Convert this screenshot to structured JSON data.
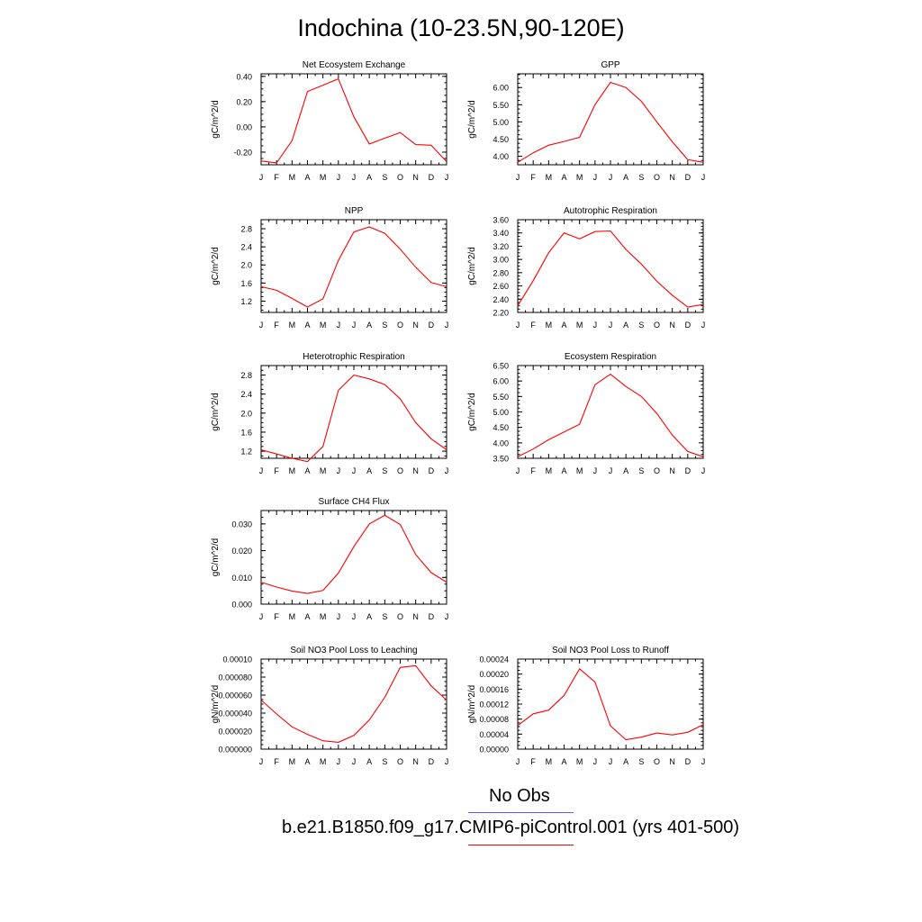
{
  "title": "Indochina (10-23.5N,90-120E)",
  "colors": {
    "model": "#ff0000",
    "obs": "#5a5aff",
    "axis": "#000000"
  },
  "months": [
    "J",
    "F",
    "M",
    "A",
    "M",
    "J",
    "J",
    "A",
    "S",
    "O",
    "N",
    "D",
    "J"
  ],
  "legend": {
    "obs_label": "No Obs",
    "model_label": "b.e21.B1850.f09_g17.CMIP6-piControl.001 (yrs 401-500)"
  },
  "chart_data": [
    {
      "type": "line",
      "title": "Net Ecosystem Exchange",
      "ylabel": "gC/m^2/d",
      "ylim": [
        -0.3,
        0.42
      ],
      "yticks": [
        -0.2,
        0.0,
        0.2,
        0.4
      ],
      "ytick_labels": [
        "-0.20",
        "0.00",
        "0.20",
        "0.40"
      ],
      "ytick_minor": 0.05,
      "values": [
        -0.27,
        -0.285,
        -0.11,
        0.28,
        0.33,
        0.38,
        0.08,
        -0.135,
        -0.09,
        -0.045,
        -0.14,
        -0.145,
        -0.275
      ]
    },
    {
      "type": "line",
      "title": "GPP",
      "ylabel": "gC/m^2/d",
      "ylim": [
        3.75,
        6.4
      ],
      "yticks": [
        4.0,
        4.5,
        5.0,
        5.5,
        6.0
      ],
      "ytick_labels": [
        "4.00",
        "4.50",
        "5.00",
        "5.50",
        "6.00"
      ],
      "ytick_minor": 0.125,
      "values": [
        3.82,
        4.1,
        4.32,
        4.43,
        4.55,
        5.5,
        6.15,
        6.0,
        5.6,
        5.0,
        4.42,
        3.9,
        3.82
      ]
    },
    {
      "type": "line",
      "title": "NPP",
      "ylabel": "gC/m^2/d",
      "ylim": [
        0.95,
        3.0
      ],
      "yticks": [
        1.2,
        1.6,
        2.0,
        2.4,
        2.8
      ],
      "ytick_labels": [
        "1.2",
        "1.6",
        "2.0",
        "2.4",
        "2.8"
      ],
      "ytick_minor": 0.1,
      "values": [
        1.52,
        1.44,
        1.26,
        1.07,
        1.25,
        2.1,
        2.73,
        2.84,
        2.7,
        2.35,
        1.95,
        1.61,
        1.52
      ]
    },
    {
      "type": "line",
      "title": "Autotrophic Respiration",
      "ylabel": "gC/m^2/d",
      "ylim": [
        2.2,
        3.6
      ],
      "yticks": [
        2.2,
        2.4,
        2.6,
        2.8,
        3.0,
        3.2,
        3.4,
        3.6
      ],
      "ytick_labels": [
        "2.20",
        "2.40",
        "2.60",
        "2.80",
        "3.00",
        "3.20",
        "3.40",
        "3.60"
      ],
      "ytick_minor": 0.05,
      "values": [
        2.3,
        2.68,
        3.1,
        3.4,
        3.31,
        3.42,
        3.43,
        3.15,
        2.93,
        2.67,
        2.46,
        2.28,
        2.32
      ]
    },
    {
      "type": "line",
      "title": "Heterotrophic Respiration",
      "ylabel": "gC/m^2/d",
      "ylim": [
        1.05,
        3.0
      ],
      "yticks": [
        1.2,
        1.6,
        2.0,
        2.4,
        2.8
      ],
      "ytick_labels": [
        "1.2",
        "1.6",
        "2.0",
        "2.4",
        "2.8"
      ],
      "ytick_minor": 0.1,
      "values": [
        1.23,
        1.14,
        1.05,
        0.98,
        1.3,
        2.48,
        2.8,
        2.72,
        2.6,
        2.3,
        1.8,
        1.46,
        1.23
      ]
    },
    {
      "type": "line",
      "title": "Ecosystem Respiration",
      "ylabel": "gC/m^2/d",
      "ylim": [
        3.5,
        6.5
      ],
      "yticks": [
        3.5,
        4.0,
        4.5,
        5.0,
        5.5,
        6.0,
        6.5
      ],
      "ytick_labels": [
        "3.50",
        "4.00",
        "4.50",
        "5.00",
        "5.50",
        "6.00",
        "6.50"
      ],
      "ytick_minor": 0.125,
      "values": [
        3.55,
        3.8,
        4.1,
        4.35,
        4.6,
        5.88,
        6.22,
        5.82,
        5.5,
        4.95,
        4.25,
        3.72,
        3.55
      ]
    },
    {
      "type": "line",
      "title": "Surface CH4 Flux",
      "ylabel": "gC/m^2/d",
      "ylim": [
        0.0,
        0.035
      ],
      "yticks": [
        0.0,
        0.01,
        0.02,
        0.03
      ],
      "ytick_labels": [
        "0.000",
        "0.010",
        "0.020",
        "0.030"
      ],
      "ytick_minor": 0.0025,
      "values": [
        0.0082,
        0.0064,
        0.0049,
        0.004,
        0.0051,
        0.0116,
        0.0215,
        0.03,
        0.0332,
        0.0298,
        0.0185,
        0.0118,
        0.0082
      ]
    },
    {
      "type": "line",
      "title": "Soil NO3 Pool Loss to Leaching",
      "ylabel": "gN/m^2/d",
      "ylim": [
        0.0,
        0.0001
      ],
      "yticks": [
        0.0,
        2e-05,
        4e-05,
        6e-05,
        8e-05,
        0.0001
      ],
      "ytick_labels": [
        "0.000000",
        "0.000020",
        "0.000040",
        "0.000060",
        "0.000080",
        "0.00010"
      ],
      "ytick_minor": 5e-06,
      "values": [
        5.45e-05,
        3.9e-05,
        2.48e-05,
        1.64e-05,
        9.3e-06,
        7.6e-06,
        1.52e-05,
        3.25e-05,
        5.75e-05,
        9.07e-05,
        9.27e-05,
        7.03e-05,
        5.45e-05
      ]
    },
    {
      "type": "line",
      "title": "Soil NO3 Pool Loss to Runoff",
      "ylabel": "gN/m^2/d",
      "ylim": [
        0.0,
        0.00024
      ],
      "yticks": [
        0.0,
        4e-05,
        8e-05,
        0.00012,
        0.00016,
        0.0002,
        0.00024
      ],
      "ytick_labels": [
        "0.00000",
        "0.00004",
        "0.00008",
        "0.00012",
        "0.00016",
        "0.00020",
        "0.00024"
      ],
      "ytick_minor": 1e-05,
      "values": [
        6.3e-05,
        9.4e-05,
        0.000104,
        0.000143,
        0.000214,
        0.000179,
        6.2e-05,
        2.5e-05,
        3.2e-05,
        4.3e-05,
        3.8e-05,
        4.5e-05,
        6.5e-05
      ]
    }
  ]
}
